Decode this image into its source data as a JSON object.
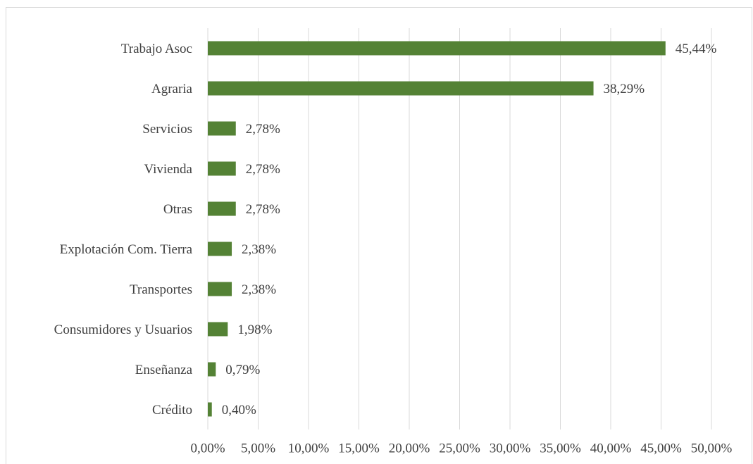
{
  "chart_data": {
    "type": "bar",
    "orientation": "horizontal",
    "categories": [
      "Trabajo Asoc",
      "Agraria",
      "Servicios",
      "Vivienda",
      "Otras",
      "Explotación Com. Tierra",
      "Transportes",
      "Consumidores y Usuarios",
      "Enseñanza",
      "Crédito"
    ],
    "values": [
      45.44,
      38.29,
      2.78,
      2.78,
      2.78,
      2.38,
      2.38,
      1.98,
      0.79,
      0.4
    ],
    "value_labels": [
      "45,44%",
      "38,29%",
      "2,78%",
      "2,78%",
      "2,78%",
      "2,38%",
      "2,38%",
      "1,98%",
      "0,79%",
      "0,40%"
    ],
    "color": "#548235",
    "xlim": [
      0,
      50
    ],
    "xticks": [
      {
        "value": 0,
        "label": "0,00%"
      },
      {
        "value": 5,
        "label": "5,00%"
      },
      {
        "value": 10,
        "label": "10,00%"
      },
      {
        "value": 15,
        "label": "15,00%"
      },
      {
        "value": 20,
        "label": "20,00%"
      },
      {
        "value": 25,
        "label": "25,00%"
      },
      {
        "value": 30,
        "label": "30,00%"
      },
      {
        "value": 35,
        "label": "35,00%"
      },
      {
        "value": 40,
        "label": "40,00%"
      },
      {
        "value": 45,
        "label": "45,00%"
      },
      {
        "value": 50,
        "label": "50,00%"
      }
    ],
    "grid": true
  }
}
